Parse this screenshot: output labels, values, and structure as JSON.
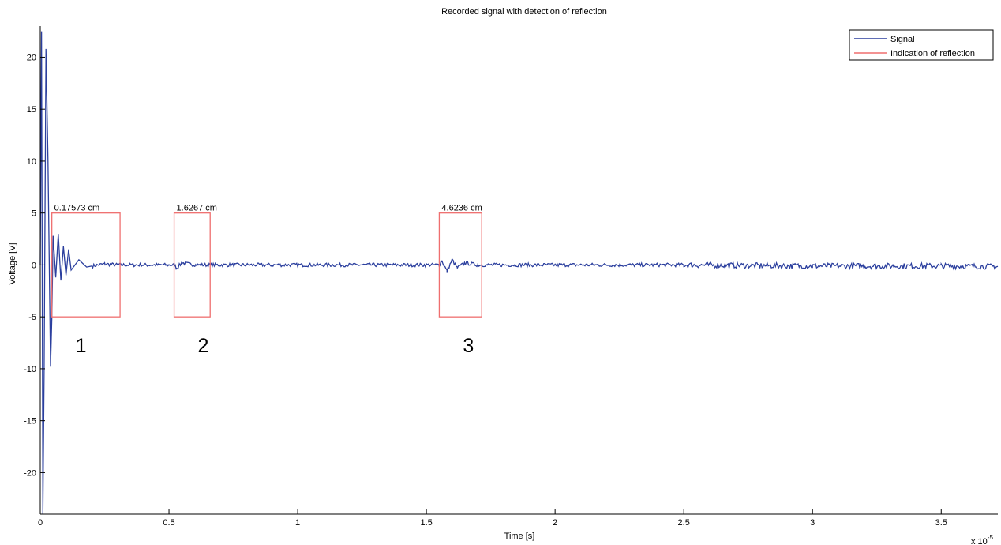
{
  "chart_data": {
    "type": "line",
    "title": "Recorded signal with detection of reflection",
    "xlabel": "Time [s]",
    "ylabel": "Voltage [V]",
    "x_exponent_label": "x 10",
    "x_exponent_power": "-5",
    "xlim": [
      0,
      3.72
    ],
    "ylim": [
      -24,
      23
    ],
    "x_ticks": [
      0,
      0.5,
      1,
      1.5,
      2,
      2.5,
      3,
      3.5
    ],
    "x_tick_labels": [
      "0",
      "0.5",
      "1",
      "1.5",
      "2",
      "2.5",
      "3",
      "3.5"
    ],
    "y_ticks": [
      -20,
      -15,
      -10,
      -5,
      0,
      5,
      10,
      15,
      20
    ],
    "y_tick_labels": [
      "-20",
      "-15",
      "-10",
      "-5",
      "0",
      "5",
      "10",
      "15",
      "20"
    ],
    "grid": false,
    "legend_position": "top-right",
    "series": [
      {
        "name": "Signal",
        "color": "#2b3f9e",
        "points": [
          [
            0.0,
            0
          ],
          [
            0.005,
            22.5
          ],
          [
            0.01,
            -24
          ],
          [
            0.015,
            -10
          ],
          [
            0.022,
            20.8
          ],
          [
            0.03,
            10
          ],
          [
            0.04,
            -9.8
          ],
          [
            0.045,
            -5
          ],
          [
            0.05,
            2.8
          ],
          [
            0.06,
            -1.2
          ],
          [
            0.07,
            3
          ],
          [
            0.08,
            -1.5
          ],
          [
            0.09,
            1.8
          ],
          [
            0.1,
            -1
          ],
          [
            0.11,
            1.5
          ],
          [
            0.12,
            -0.5
          ],
          [
            0.15,
            0.5
          ],
          [
            0.18,
            -0.2
          ],
          [
            0.25,
            0.1
          ],
          [
            0.3,
            0
          ],
          [
            0.52,
            0
          ],
          [
            0.53,
            -0.3
          ],
          [
            0.55,
            0.2
          ],
          [
            0.6,
            0
          ],
          [
            1.55,
            0
          ],
          [
            1.56,
            0.4
          ],
          [
            1.58,
            -0.6
          ],
          [
            1.6,
            0.5
          ],
          [
            1.62,
            -0.3
          ],
          [
            1.65,
            0.2
          ],
          [
            1.7,
            0
          ],
          [
            2.5,
            0
          ],
          [
            3.0,
            -0.1
          ],
          [
            3.5,
            -0.1
          ],
          [
            3.72,
            -0.15
          ]
        ]
      },
      {
        "name": "Indication of reflection",
        "color": "#ef6f6f",
        "boxes": [
          {
            "x0": 0.045,
            "x1": 0.31,
            "y0": -5,
            "y1": 5,
            "label": "0.17573 cm",
            "number": "1"
          },
          {
            "x0": 0.52,
            "x1": 0.66,
            "y0": -5,
            "y1": 5,
            "label": "1.6267 cm",
            "number": "2"
          },
          {
            "x0": 1.55,
            "x1": 1.715,
            "y0": -5,
            "y1": 5,
            "label": "4.6236 cm",
            "number": "3"
          }
        ]
      }
    ]
  }
}
